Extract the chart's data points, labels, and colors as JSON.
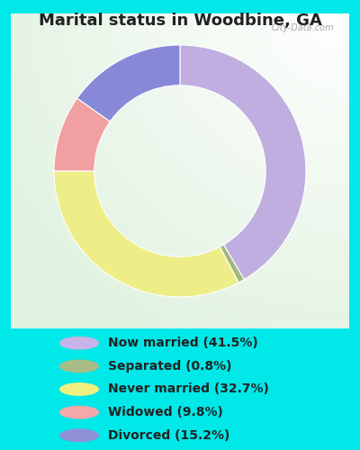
{
  "title": "Marital status in Woodbine, GA",
  "title_fontsize": 13,
  "labels": [
    "Now married (41.5%)",
    "Separated (0.8%)",
    "Never married (32.7%)",
    "Widowed (9.8%)",
    "Divorced (15.2%)"
  ],
  "values": [
    41.5,
    0.8,
    32.7,
    9.8,
    15.2
  ],
  "colors": [
    "#c0aee0",
    "#a0b87a",
    "#eeee88",
    "#f0a0a0",
    "#8888d8"
  ],
  "legend_colors": [
    "#c8b4e8",
    "#a8bc88",
    "#f0f080",
    "#f4a8a8",
    "#9090d8"
  ],
  "background_cyan": "#00e8e8",
  "chart_bg_color": "#e0f0e0",
  "watermark": "City-Data.com",
  "figsize": [
    4.0,
    5.0
  ],
  "dpi": 100,
  "donut_width": 0.32,
  "start_angle": 90,
  "title_color": "#222222",
  "legend_fontsize": 10,
  "legend_text_color": "#222222"
}
